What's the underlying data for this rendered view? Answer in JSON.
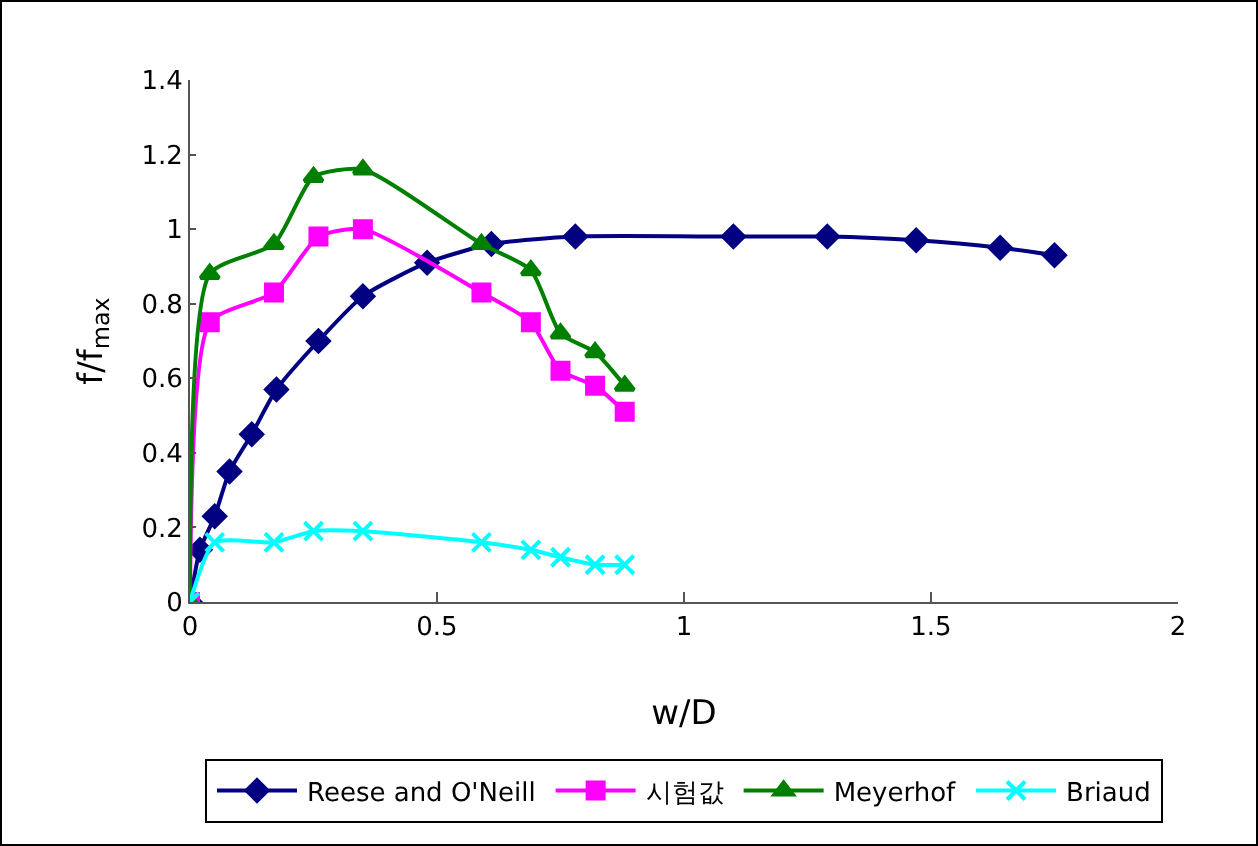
{
  "chart_data": {
    "type": "line",
    "xlabel": "w/D",
    "ylabel": "f/f$_{max}$",
    "xlim": [
      0,
      2
    ],
    "xticks": [
      0,
      0.5,
      1,
      1.5,
      2
    ],
    "ylim": [
      0,
      1.4
    ],
    "yticks": [
      0,
      0.2,
      0.4,
      0.6,
      0.8,
      1,
      1.2,
      1.4
    ],
    "grid": false,
    "legend": "bottom",
    "line_style": "solid",
    "series": [
      {
        "name": "Reese and O'Neill",
        "color": "#000080",
        "marker": "diamond",
        "x": [
          0,
          0.02,
          0.05,
          0.08,
          0.125,
          0.175,
          0.26,
          0.35,
          0.48,
          0.61,
          0.78,
          1.1,
          1.29,
          1.47,
          1.64,
          1.75
        ],
        "values": [
          0,
          0.14,
          0.23,
          0.35,
          0.45,
          0.57,
          0.7,
          0.82,
          0.91,
          0.96,
          0.98,
          0.98,
          0.98,
          0.97,
          0.95,
          0.93
        ]
      },
      {
        "name": "시험값",
        "color": "#ff00ff",
        "marker": "square",
        "x": [
          0,
          0.04,
          0.17,
          0.26,
          0.35,
          0.59,
          0.69,
          0.75,
          0.82,
          0.88
        ],
        "values": [
          0,
          0.75,
          0.83,
          0.98,
          1.0,
          0.83,
          0.75,
          0.62,
          0.58,
          0.51
        ]
      },
      {
        "name": "Meyerhof",
        "color": "#008000",
        "marker": "triangle",
        "x": [
          0,
          0.04,
          0.17,
          0.25,
          0.35,
          0.59,
          0.69,
          0.75,
          0.82,
          0.88
        ],
        "values": [
          0,
          0.88,
          0.96,
          1.14,
          1.16,
          0.96,
          0.89,
          0.72,
          0.67,
          0.58
        ]
      },
      {
        "name": "Briaud",
        "color": "#00ffff",
        "marker": "cross",
        "x": [
          0,
          0.05,
          0.17,
          0.25,
          0.35,
          0.59,
          0.69,
          0.75,
          0.82,
          0.88
        ],
        "values": [
          0,
          0.16,
          0.16,
          0.19,
          0.19,
          0.16,
          0.14,
          0.12,
          0.1,
          0.1
        ]
      }
    ]
  }
}
